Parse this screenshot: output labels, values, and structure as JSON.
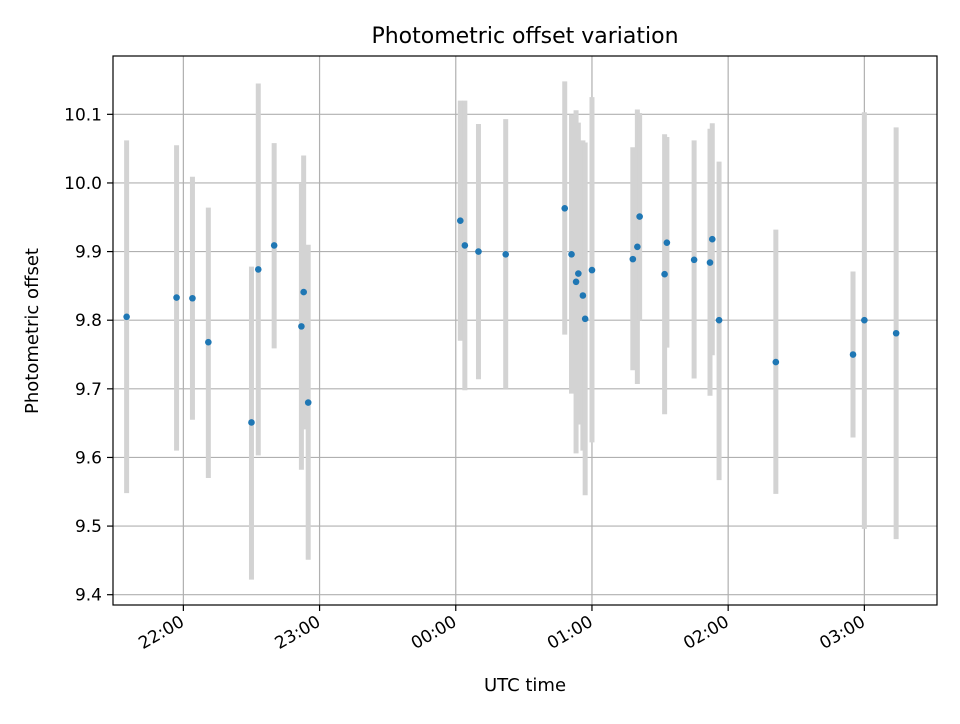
{
  "colors": {
    "point": "#1f77b4",
    "errorbar": "#d3d3d3",
    "grid": "#b0b0b0",
    "axis": "#000000"
  },
  "chart_data": {
    "type": "scatter",
    "title": "Photometric offset variation",
    "xlabel": "UTC time",
    "ylabel": "Photometric offset",
    "x_axis_kind": "time",
    "xlim": [
      "21:29",
      "03:32"
    ],
    "ylim": [
      9.385,
      10.185
    ],
    "grid": true,
    "legend": "none",
    "x_ticks": [
      "22:00",
      "23:00",
      "00:00",
      "01:00",
      "02:00",
      "03:00"
    ],
    "y_ticks": [
      "9.4",
      "9.5",
      "9.6",
      "9.7",
      "9.8",
      "9.9",
      "10.0",
      "10.1"
    ],
    "series": [
      {
        "points": [
          {
            "time": "21:35",
            "y": 9.805,
            "ylo": 9.548,
            "yhi": 10.062
          },
          {
            "time": "21:57",
            "y": 9.833,
            "ylo": 9.61,
            "yhi": 10.055
          },
          {
            "time": "22:04",
            "y": 9.832,
            "ylo": 9.655,
            "yhi": 10.009
          },
          {
            "time": "22:11",
            "y": 9.768,
            "ylo": 9.57,
            "yhi": 9.964
          },
          {
            "time": "22:30",
            "y": 9.651,
            "ylo": 9.422,
            "yhi": 9.878
          },
          {
            "time": "22:33",
            "y": 9.874,
            "ylo": 9.603,
            "yhi": 10.145
          },
          {
            "time": "22:40",
            "y": 9.909,
            "ylo": 9.759,
            "yhi": 10.058
          },
          {
            "time": "22:52",
            "y": 9.791,
            "ylo": 9.582,
            "yhi": 10.0
          },
          {
            "time": "22:53",
            "y": 9.841,
            "ylo": 9.641,
            "yhi": 10.04
          },
          {
            "time": "22:55",
            "y": 9.68,
            "ylo": 9.451,
            "yhi": 9.91
          },
          {
            "time": "00:02",
            "y": 9.945,
            "ylo": 9.77,
            "yhi": 10.12
          },
          {
            "time": "00:04",
            "y": 9.909,
            "ylo": 9.698,
            "yhi": 10.12
          },
          {
            "time": "00:10",
            "y": 9.9,
            "ylo": 9.714,
            "yhi": 10.086
          },
          {
            "time": "00:22",
            "y": 9.896,
            "ylo": 9.7,
            "yhi": 10.093
          },
          {
            "time": "00:48",
            "y": 9.963,
            "ylo": 9.779,
            "yhi": 10.148
          },
          {
            "time": "00:51",
            "y": 9.896,
            "ylo": 9.693,
            "yhi": 10.1
          },
          {
            "time": "00:53",
            "y": 9.856,
            "ylo": 9.606,
            "yhi": 10.106
          },
          {
            "time": "00:54",
            "y": 9.868,
            "ylo": 9.648,
            "yhi": 10.088
          },
          {
            "time": "00:56",
            "y": 9.836,
            "ylo": 9.61,
            "yhi": 10.062
          },
          {
            "time": "00:57",
            "y": 9.802,
            "ylo": 9.545,
            "yhi": 10.059
          },
          {
            "time": "01:00",
            "y": 9.873,
            "ylo": 9.622,
            "yhi": 10.125
          },
          {
            "time": "01:18",
            "y": 9.889,
            "ylo": 9.727,
            "yhi": 10.052
          },
          {
            "time": "01:20",
            "y": 9.907,
            "ylo": 9.707,
            "yhi": 10.107
          },
          {
            "time": "01:21",
            "y": 9.951,
            "ylo": 9.8,
            "yhi": 10.102
          },
          {
            "time": "01:32",
            "y": 9.867,
            "ylo": 9.663,
            "yhi": 10.071
          },
          {
            "time": "01:33",
            "y": 9.913,
            "ylo": 9.76,
            "yhi": 10.067
          },
          {
            "time": "01:45",
            "y": 9.888,
            "ylo": 9.715,
            "yhi": 10.062
          },
          {
            "time": "01:52",
            "y": 9.884,
            "ylo": 9.69,
            "yhi": 10.079
          },
          {
            "time": "01:53",
            "y": 9.918,
            "ylo": 9.749,
            "yhi": 10.087
          },
          {
            "time": "01:56",
            "y": 9.8,
            "ylo": 9.567,
            "yhi": 10.031
          },
          {
            "time": "02:21",
            "y": 9.739,
            "ylo": 9.547,
            "yhi": 9.932
          },
          {
            "time": "02:55",
            "y": 9.75,
            "ylo": 9.629,
            "yhi": 9.871
          },
          {
            "time": "03:00",
            "y": 9.8,
            "ylo": 9.496,
            "yhi": 10.103
          },
          {
            "time": "03:14",
            "y": 9.781,
            "ylo": 9.481,
            "yhi": 10.081
          }
        ]
      }
    ]
  }
}
